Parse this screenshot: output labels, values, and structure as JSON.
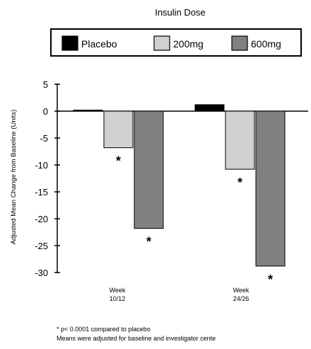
{
  "chart_data": {
    "type": "bar",
    "title": "Insulin Dose",
    "ylabel": "Adjusted Mean Change from Baseline (Units)",
    "xlabel": "",
    "ylim": [
      -30,
      5
    ],
    "yticks": [
      "5",
      "0",
      "-5",
      "-10",
      "-15",
      "-20",
      "-25",
      "-30"
    ],
    "categories": [
      {
        "line1": "Week",
        "line2": "10/12"
      },
      {
        "line1": "Week",
        "line2": "24/26"
      }
    ],
    "legend_position": "top",
    "series": [
      {
        "name": "Placebo",
        "color": "#000000",
        "values": [
          0.2,
          1.2
        ],
        "significant": [
          false,
          false
        ]
      },
      {
        "name": "200mg",
        "color": "#d0d0d0",
        "values": [
          -6.8,
          -10.8
        ],
        "significant": [
          true,
          true
        ]
      },
      {
        "name": "600mg",
        "color": "#808080",
        "values": [
          -21.8,
          -28.8
        ],
        "significant": [
          true,
          true
        ]
      }
    ],
    "significance_marker": "*",
    "footnotes": [
      "* p< 0.0001 compared to placebo",
      "Means were adjusted for baseline and investigator cente"
    ]
  }
}
